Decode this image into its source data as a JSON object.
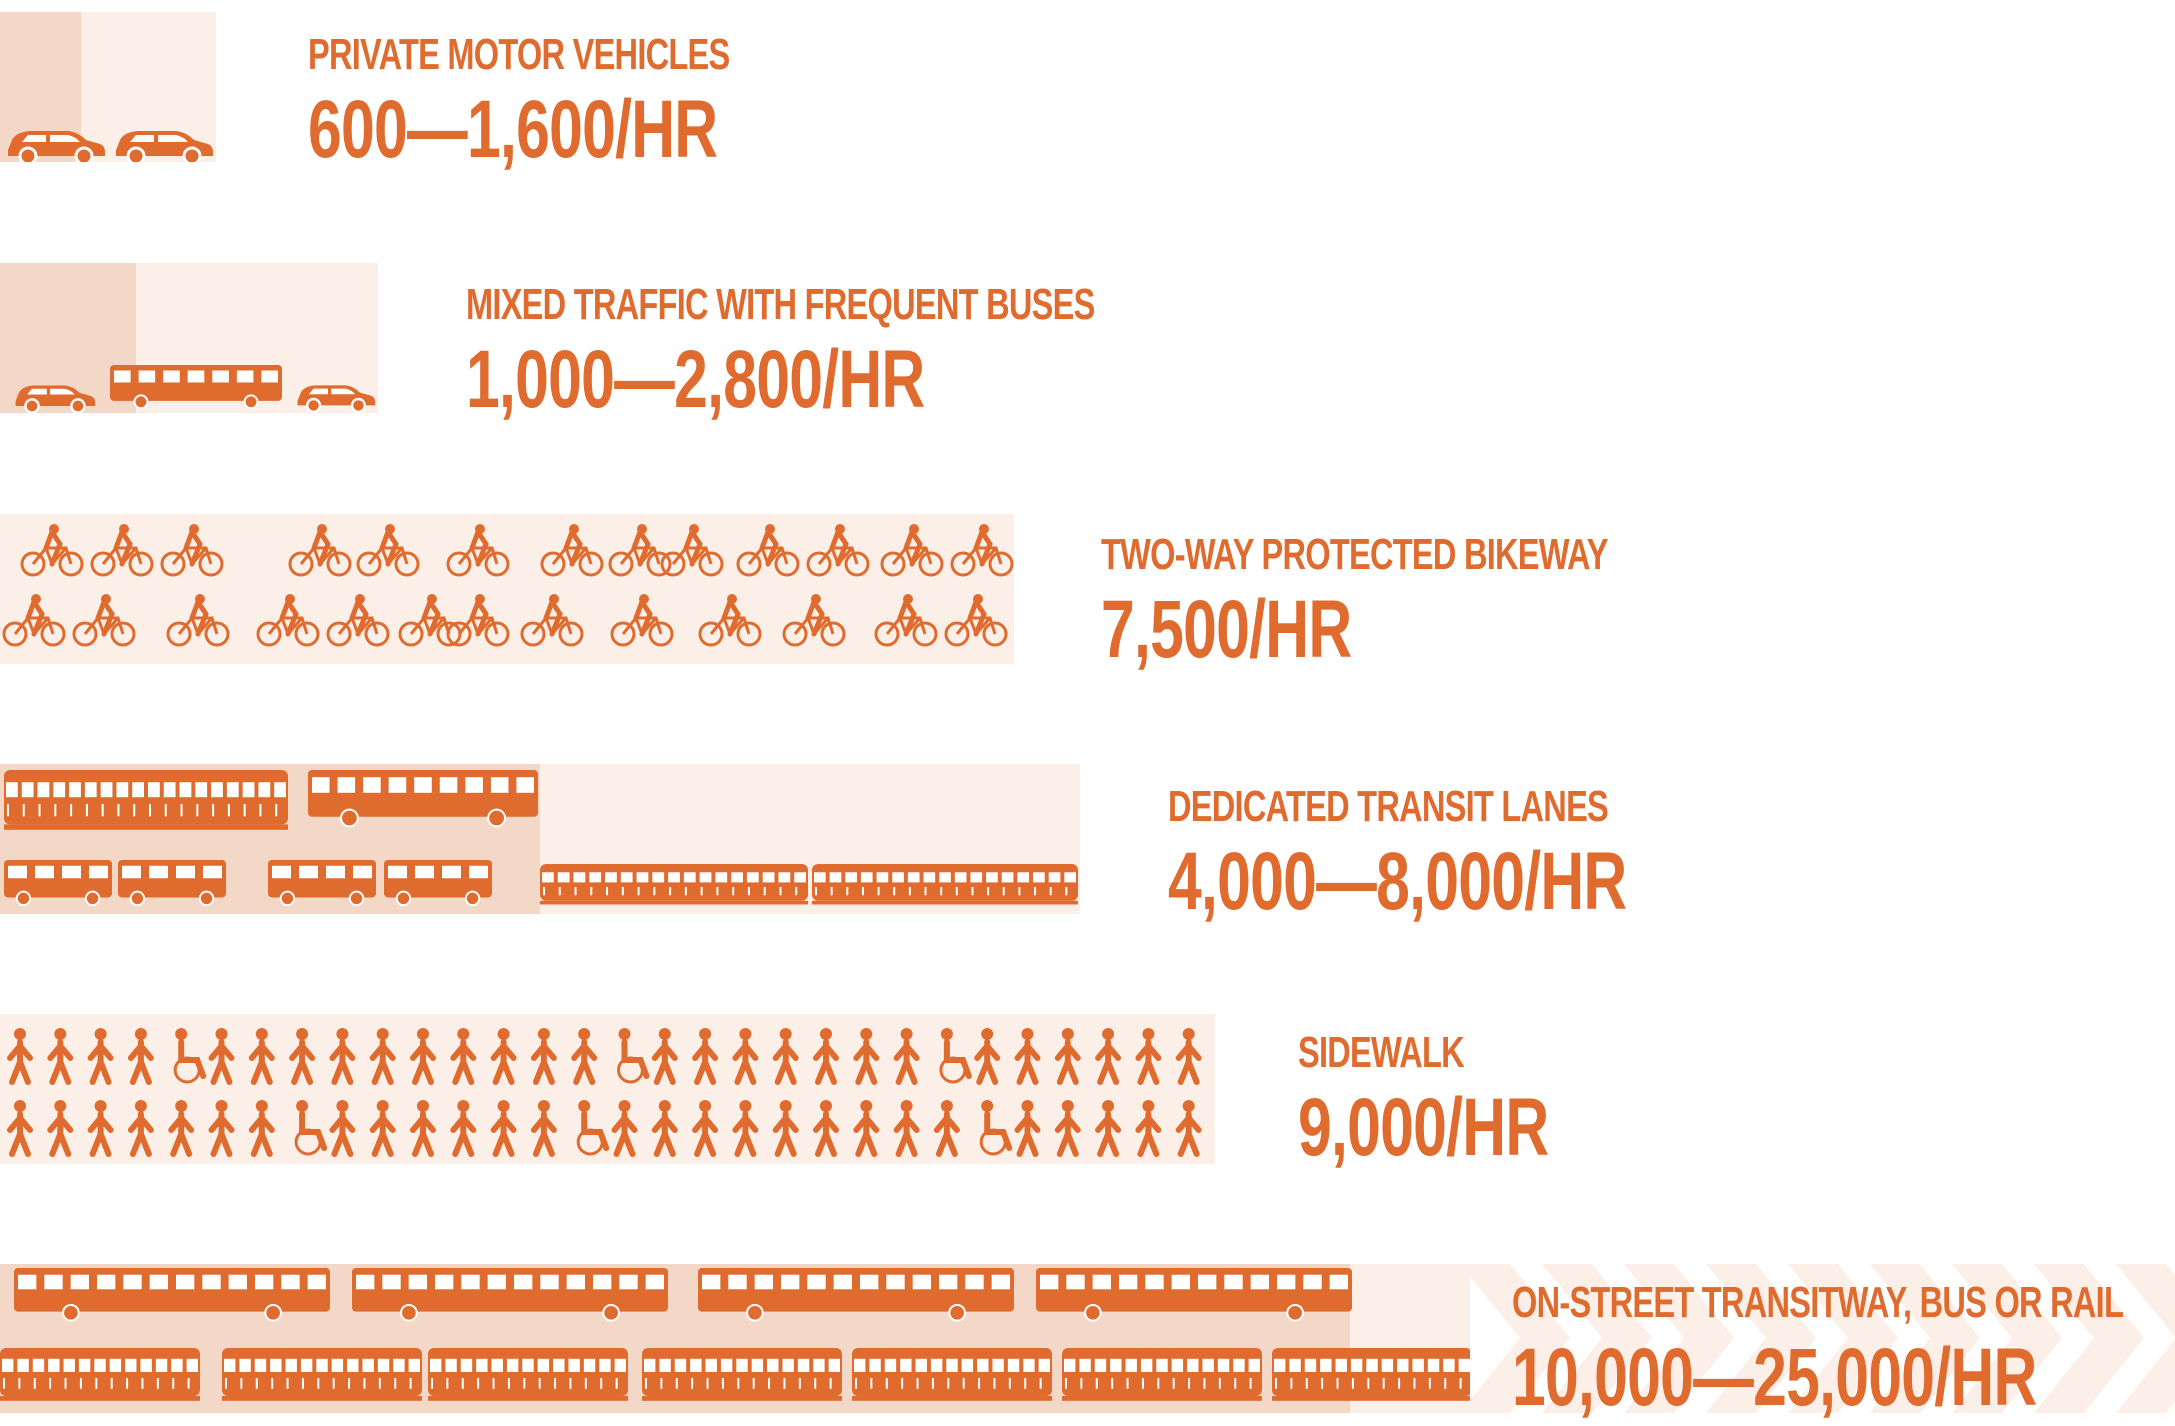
{
  "chart_data": {
    "type": "bar",
    "title": "",
    "xlabel": "",
    "ylabel": "",
    "unit": "/HR",
    "accent_color": "#e06b2f",
    "lane_color": "#fbefe8",
    "lane_dark_color": "#f3d8c8",
    "series": [
      {
        "name": "PRIVATE MOTOR VEHICLES",
        "label": "600—1,600/HR",
        "min": 600,
        "max": 1600,
        "icons": "car"
      },
      {
        "name": "MIXED TRAFFIC WITH FREQUENT BUSES",
        "label": "1,000—2,800/HR",
        "min": 1000,
        "max": 2800,
        "icons": "car-bus"
      },
      {
        "name": "TWO-WAY PROTECTED BIKEWAY",
        "label": "7,500/HR",
        "min": 7500,
        "max": 7500,
        "icons": "bicycle"
      },
      {
        "name": "DEDICATED TRANSIT LANES",
        "label": "4,000—8,000/HR",
        "min": 4000,
        "max": 8000,
        "icons": "tram-bus"
      },
      {
        "name": "SIDEWALK",
        "label": "9,000/HR",
        "min": 9000,
        "max": 9000,
        "icons": "pedestrian"
      },
      {
        "name": "ON-STREET TRANSITWAY, BUS OR RAIL",
        "label": "10,000—25,000/HR",
        "min": 10000,
        "max": 25000,
        "icons": "bus-rail"
      }
    ]
  }
}
